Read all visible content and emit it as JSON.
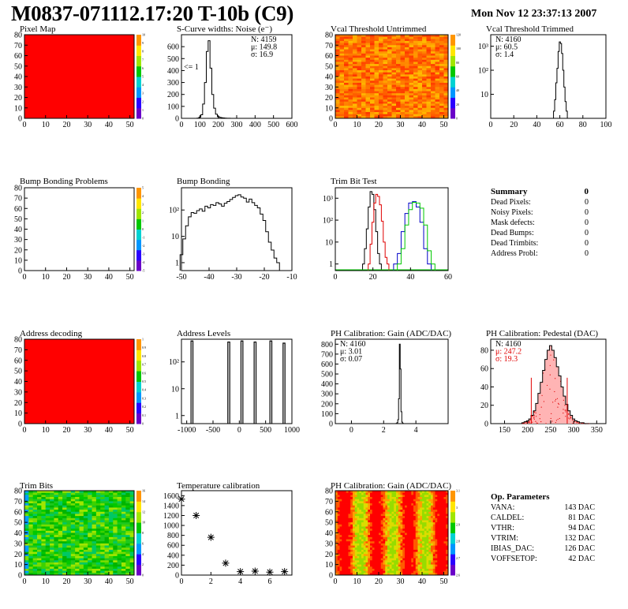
{
  "header": {
    "title": "M0837-071112.17:20 T-10b (C9)",
    "date": "Mon Nov 12 23:37:13 2007"
  },
  "chart_data": [
    {
      "id": "pixel_map",
      "type": "heatmap",
      "title": "Pixel Map",
      "fill": "uniform-red",
      "xticks": [
        "0",
        "10",
        "20",
        "30",
        "40",
        "50"
      ],
      "yticks": [
        "0",
        "10",
        "20",
        "30",
        "40",
        "50",
        "60",
        "70",
        "80"
      ],
      "zticks": [
        "0",
        "1",
        "2",
        "3",
        "4",
        "5",
        "6",
        "7",
        "8",
        "9",
        "10"
      ],
      "xlim": [
        0,
        52
      ],
      "ylim": [
        0,
        80
      ]
    },
    {
      "id": "noise",
      "type": "histogram",
      "title": "S-Curve widths: Noise (e⁻)",
      "xticks": [
        "0",
        "100",
        "200",
        "300",
        "400",
        "500",
        "600"
      ],
      "yticks": [
        "0",
        "100",
        "200",
        "300",
        "400",
        "500",
        "600"
      ],
      "xlim": [
        0,
        600
      ],
      "ylim": [
        0,
        700
      ],
      "annotation": "<= 1",
      "stats": [
        "N: 4159",
        "μ: 149.8",
        "σ: 16.9"
      ],
      "x": [
        80,
        90,
        100,
        110,
        120,
        130,
        140,
        150,
        160,
        170,
        180,
        190,
        200,
        210,
        220,
        230,
        240,
        250,
        260,
        270,
        280
      ],
      "values": [
        0,
        2,
        10,
        30,
        120,
        300,
        560,
        650,
        420,
        200,
        85,
        35,
        15,
        8,
        5,
        3,
        2,
        1,
        1,
        0,
        0
      ]
    },
    {
      "id": "vcal_untrimmed",
      "type": "heatmap",
      "title": "Vcal Threshold Untrimmed",
      "fill": "noisy-warm",
      "xticks": [
        "0",
        "10",
        "20",
        "30",
        "40",
        "50"
      ],
      "yticks": [
        "0",
        "10",
        "20",
        "30",
        "40",
        "50",
        "60",
        "70",
        "80"
      ],
      "zticks": [
        "0",
        "20",
        "40",
        "60",
        "80",
        "100",
        "120"
      ],
      "xlim": [
        0,
        52
      ],
      "ylim": [
        0,
        80
      ]
    },
    {
      "id": "vcal_trimmed",
      "type": "histogram",
      "log": true,
      "title": "Vcal Threshold Trimmed",
      "xticks": [
        "0",
        "20",
        "40",
        "60",
        "80",
        "100"
      ],
      "yticks": [
        "10",
        "10²",
        "10³"
      ],
      "xlim": [
        0,
        100
      ],
      "ylim": [
        1,
        3000
      ],
      "stats": [
        "N: 4160",
        "μ: 60.5",
        "σ:  1.4"
      ],
      "x": [
        55,
        56,
        57,
        58,
        59,
        60,
        61,
        62,
        63,
        64,
        65,
        66,
        67
      ],
      "values": [
        2,
        6,
        30,
        120,
        600,
        1500,
        1300,
        500,
        100,
        20,
        5,
        2,
        1
      ]
    },
    {
      "id": "bump_problems",
      "type": "heatmap",
      "title": "Bump Bonding Problems",
      "fill": "empty",
      "xticks": [
        "0",
        "10",
        "20",
        "30",
        "40",
        "50"
      ],
      "yticks": [
        "0",
        "10",
        "20",
        "30",
        "40",
        "50",
        "60",
        "70",
        "80"
      ],
      "zticks": [
        "-5",
        "-4",
        "-3",
        "-2",
        "-1",
        "0",
        "1",
        "2",
        "3",
        "4",
        "5"
      ],
      "xlim": [
        0,
        52
      ],
      "ylim": [
        0,
        80
      ]
    },
    {
      "id": "bump_bonding",
      "type": "histogram",
      "log": true,
      "title": "Bump Bonding",
      "xticks": [
        "-50",
        "-40",
        "-30",
        "-20",
        "-10"
      ],
      "yticks": [
        "1",
        "10",
        "10²"
      ],
      "xlim": [
        -50,
        -10
      ],
      "ylim": [
        0.5,
        700
      ],
      "x": [
        -50,
        -49,
        -48,
        -47,
        -46,
        -45,
        -44,
        -43,
        -42,
        -41,
        -40,
        -39,
        -38,
        -37,
        -36,
        -35,
        -34,
        -33,
        -32,
        -31,
        -30,
        -29,
        -28,
        -27,
        -26,
        -25,
        -24,
        -23,
        -22,
        -21,
        -20,
        -19,
        -18,
        -17,
        -16,
        -15
      ],
      "values": [
        2,
        8,
        25,
        55,
        80,
        75,
        95,
        110,
        90,
        140,
        120,
        160,
        150,
        190,
        170,
        140,
        180,
        210,
        250,
        300,
        350,
        380,
        310,
        280,
        200,
        260,
        190,
        150,
        120,
        70,
        40,
        15,
        6,
        3,
        1.5,
        1
      ]
    },
    {
      "id": "trim_bits",
      "type": "histogram",
      "log": true,
      "title": "Trim Bit Test",
      "xticks": [
        "0",
        "20",
        "40",
        "60"
      ],
      "yticks": [
        "1",
        "10",
        "10²",
        "10³"
      ],
      "xlim": [
        0,
        60
      ],
      "ylim": [
        0.5,
        3000
      ],
      "series": [
        {
          "color": "#000000",
          "x": [
            15,
            16,
            17,
            18,
            19,
            20,
            21,
            22,
            23,
            24
          ],
          "values": [
            1,
            5,
            40,
            400,
            2000,
            1500,
            300,
            30,
            3,
            1
          ]
        },
        {
          "color": "#e00000",
          "x": [
            18,
            19,
            20,
            21,
            22,
            23,
            24,
            25,
            26,
            27,
            28
          ],
          "values": [
            1,
            8,
            80,
            600,
            1500,
            1200,
            500,
            90,
            10,
            2,
            1
          ]
        },
        {
          "color": "#0000c8",
          "x": [
            32,
            34,
            36,
            38,
            40,
            42,
            44,
            46,
            48,
            50
          ],
          "values": [
            1,
            3,
            30,
            200,
            600,
            700,
            400,
            80,
            5,
            1
          ]
        },
        {
          "color": "#00c800",
          "x": [
            34,
            36,
            38,
            40,
            42,
            44,
            46,
            48,
            50,
            52
          ],
          "values": [
            1,
            5,
            60,
            300,
            650,
            600,
            350,
            60,
            4,
            1
          ]
        }
      ]
    },
    {
      "id": "address_decoding",
      "type": "heatmap",
      "title": "Address decoding",
      "fill": "uniform-red",
      "xticks": [
        "0",
        "10",
        "20",
        "30",
        "40",
        "50"
      ],
      "yticks": [
        "0",
        "10",
        "20",
        "30",
        "40",
        "50",
        "60",
        "70",
        "80"
      ],
      "zticks": [
        "0",
        "0.1",
        "0.2",
        "0.3",
        "0.4",
        "0.5",
        "0.6",
        "0.7",
        "0.8",
        "0.9",
        "1"
      ],
      "xlim": [
        0,
        52
      ],
      "ylim": [
        0,
        80
      ]
    },
    {
      "id": "address_levels",
      "type": "histogram",
      "log": true,
      "title": "Address Levels",
      "xticks": [
        "-1000",
        "-500",
        "0",
        "500",
        "1000"
      ],
      "yticks": [
        "1",
        "10",
        "10²"
      ],
      "xlim": [
        -1100,
        1000
      ],
      "ylim": [
        0.5,
        700
      ],
      "peaks": [
        -900,
        -200,
        50,
        300,
        600,
        850
      ],
      "peak_values": [
        600,
        550,
        600,
        550,
        600,
        500
      ]
    },
    {
      "id": "ph_gain",
      "type": "histogram",
      "title": "PH Calibration: Gain (ADC/DAC)",
      "xticks": [
        "0",
        "2",
        "4"
      ],
      "yticks": [
        "0",
        "100",
        "200",
        "300",
        "400",
        "500",
        "600",
        "700",
        "800"
      ],
      "xlim": [
        -1,
        6
      ],
      "ylim": [
        0,
        850
      ],
      "stats": [
        "N: 4160",
        "μ: 3.01",
        "σ: 0.07"
      ],
      "x": [
        2.8,
        2.85,
        2.9,
        2.95,
        3.0,
        3.05,
        3.1,
        3.15,
        3.2
      ],
      "values": [
        2,
        10,
        40,
        250,
        800,
        550,
        120,
        15,
        2
      ]
    },
    {
      "id": "ph_pedestal",
      "type": "histogram",
      "title": "PH Calibration: Pedestal (DAC)",
      "xticks": [
        "150",
        "200",
        "250",
        "300",
        "350"
      ],
      "yticks": [
        "0",
        "20",
        "40",
        "60",
        "80"
      ],
      "xlim": [
        120,
        370
      ],
      "ylim": [
        0,
        92
      ],
      "stats": [
        "N: 4160",
        "μ: 247.2",
        "σ: 19.3"
      ],
      "fit_lines": [
        208,
        286
      ],
      "x": [
        190,
        195,
        200,
        205,
        210,
        215,
        220,
        225,
        230,
        235,
        240,
        245,
        250,
        255,
        260,
        265,
        270,
        275,
        280,
        285,
        290,
        295,
        300,
        305,
        310,
        315,
        320,
        325,
        330
      ],
      "values": [
        1,
        2,
        3,
        5,
        9,
        14,
        22,
        33,
        45,
        58,
        70,
        80,
        85,
        80,
        72,
        62,
        52,
        40,
        30,
        21,
        14,
        9,
        5,
        3,
        2,
        1,
        1,
        0,
        0
      ]
    },
    {
      "id": "trim_bit_map",
      "type": "heatmap",
      "title": "Trim Bits",
      "fill": "noisy-green",
      "xticks": [
        "0",
        "10",
        "20",
        "30",
        "40",
        "50"
      ],
      "yticks": [
        "0",
        "10",
        "20",
        "30",
        "40",
        "50",
        "60",
        "70",
        "80"
      ],
      "zticks": [
        "0",
        "2",
        "4",
        "6",
        "8",
        "10",
        "12",
        "14",
        "16"
      ],
      "xlim": [
        0,
        52
      ],
      "ylim": [
        0,
        80
      ]
    },
    {
      "id": "temperature",
      "type": "scatter",
      "title": "Temperature calibration",
      "xticks": [
        "0",
        "2",
        "4",
        "6"
      ],
      "yticks": [
        "0",
        "200",
        "400",
        "600",
        "800",
        "1000",
        "1200",
        "1400",
        "1600"
      ],
      "xlim": [
        0,
        7.5
      ],
      "ylim": [
        0,
        1700
      ],
      "x": [
        0,
        1,
        2,
        3,
        4,
        5,
        6,
        7
      ],
      "values": [
        1530,
        1200,
        760,
        240,
        70,
        80,
        60,
        70
      ]
    },
    {
      "id": "gain_map",
      "type": "heatmap",
      "title": "PH Calibration: Gain (ADC/DAC)",
      "fill": "columns",
      "xticks": [
        "0",
        "10",
        "20",
        "30",
        "40",
        "50"
      ],
      "yticks": [
        "0",
        "10",
        "20",
        "30",
        "40",
        "50",
        "60",
        "70",
        "80"
      ],
      "zticks": [
        "2.6",
        "2.7",
        "2.8",
        "2.9",
        "3",
        "3.1"
      ],
      "xlim": [
        0,
        52
      ],
      "ylim": [
        0,
        80
      ]
    }
  ],
  "summary": {
    "title": "Summary",
    "value": "0",
    "rows": [
      {
        "label": "Dead Pixels:",
        "value": "0"
      },
      {
        "label": "Noisy Pixels:",
        "value": "0"
      },
      {
        "label": "Mask defects:",
        "value": "0"
      },
      {
        "label": "Dead Bumps:",
        "value": "0"
      },
      {
        "label": "Dead Trimbits:",
        "value": "0"
      },
      {
        "label": "Address Probl:",
        "value": "0"
      }
    ]
  },
  "op_params": {
    "title": "Op. Parameters",
    "rows": [
      {
        "label": "VANA:",
        "value": "143 DAC"
      },
      {
        "label": "CALDEL:",
        "value": "81 DAC"
      },
      {
        "label": "VTHR:",
        "value": "94 DAC"
      },
      {
        "label": "VTRIM:",
        "value": "132 DAC"
      },
      {
        "label": "IBIAS_DAC:",
        "value": "126 DAC"
      },
      {
        "label": "VOFFSETOP:",
        "value": "42 DAC"
      }
    ]
  }
}
